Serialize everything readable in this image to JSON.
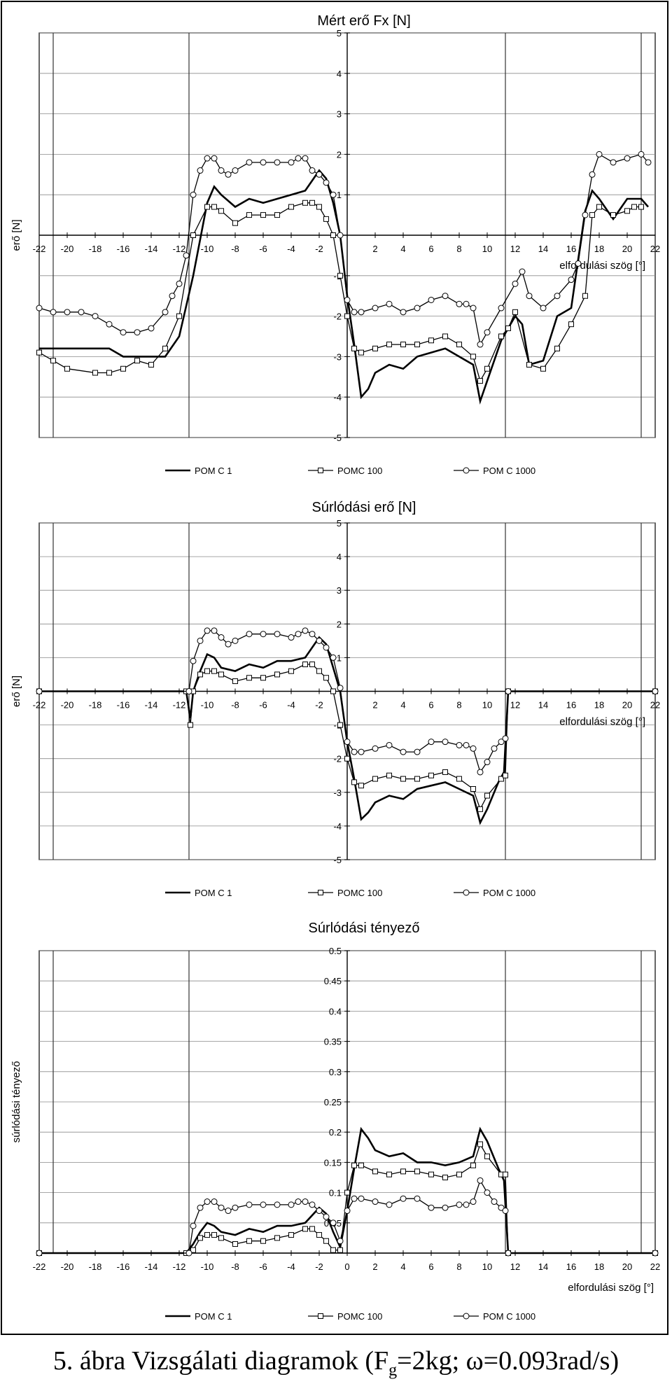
{
  "caption": {
    "prefix": "5. ábra Vizsgálati diagramok (F",
    "sub": "g",
    "suffix": "=2kg; ω=0.093rad/s)"
  },
  "chart_data": [
    {
      "type": "line",
      "title": "Mért erő Fx [N]",
      "ylabel": "erő [N]",
      "xlabel": "elfordulási szög [°]",
      "xlim": [
        -22,
        22
      ],
      "ylim": [
        -5,
        5
      ],
      "x_ticks": [
        -22,
        -20,
        -18,
        -16,
        -14,
        -12,
        -10,
        -8,
        -6,
        -4,
        -2,
        0,
        2,
        4,
        6,
        8,
        10,
        12,
        14,
        16,
        18,
        20,
        22
      ],
      "x_tick_labels": [
        "-22",
        "-20",
        "-18",
        "-16",
        "-14",
        "-12",
        "-10",
        "-8",
        "-6",
        "-4",
        "-2",
        "",
        "2",
        "4",
        "6",
        "8",
        "10",
        "12",
        "14",
        "16",
        "18",
        "20",
        "22"
      ],
      "y_ticks": [
        -5,
        -4,
        -3,
        -2,
        -1,
        1,
        2,
        3,
        4,
        5
      ],
      "y_tick_labels": [
        "-5",
        "-4",
        "-3",
        "-2",
        "-1",
        "1",
        "2",
        "3",
        "4",
        "5"
      ],
      "grid": true,
      "vlines": [
        -21,
        -11.3,
        11.3,
        21
      ],
      "legend_position": "bottom",
      "series": [
        {
          "name": "POM C 1",
          "marker": "none",
          "x": [
            -22,
            -17,
            -16,
            -13,
            -12,
            -11,
            -10,
            -9.5,
            -9,
            -8,
            -7,
            -6,
            -5,
            -4,
            -3,
            -2,
            -1.5,
            -1,
            -0.5,
            0,
            0.5,
            1,
            1.5,
            2,
            3,
            4,
            5,
            6,
            7,
            8,
            9,
            9.5,
            10,
            11,
            11.5,
            12,
            12.5,
            13,
            14,
            15,
            16,
            17,
            17.5,
            18,
            19,
            20,
            21,
            21.5
          ],
          "y": [
            -2.8,
            -2.8,
            -3,
            -3,
            -2.5,
            -1,
            0.8,
            1.2,
            1,
            0.7,
            0.9,
            0.8,
            0.9,
            1,
            1.1,
            1.6,
            1.4,
            0.8,
            0,
            -1.5,
            -2.7,
            -4,
            -3.8,
            -3.4,
            -3.2,
            -3.3,
            -3,
            -2.9,
            -2.8,
            -3,
            -3.2,
            -4.1,
            -3.6,
            -2.6,
            -2.3,
            -2,
            -2.2,
            -3.2,
            -3.1,
            -2,
            -1.8,
            0.6,
            1.1,
            0.9,
            0.4,
            0.9,
            0.9,
            0.7
          ]
        },
        {
          "name": "POMC 100",
          "marker": "square",
          "x": [
            -22,
            -21,
            -20,
            -18,
            -17,
            -16,
            -15,
            -14,
            -13,
            -12,
            -11,
            -10,
            -9.5,
            -9,
            -8,
            -7,
            -6,
            -5,
            -4,
            -3,
            -2.5,
            -2,
            -1.5,
            -1,
            -0.5,
            0,
            0.5,
            1,
            2,
            3,
            4,
            5,
            6,
            7,
            8,
            9,
            9.5,
            10,
            11,
            11.5,
            12,
            13,
            14,
            15,
            16,
            17,
            17.5,
            18,
            19,
            20,
            20.5,
            21
          ],
          "y": [
            -2.9,
            -3.1,
            -3.3,
            -3.4,
            -3.4,
            -3.3,
            -3.1,
            -3.2,
            -2.8,
            -2,
            0,
            0.7,
            0.7,
            0.6,
            0.3,
            0.5,
            0.5,
            0.5,
            0.7,
            0.8,
            0.8,
            0.7,
            0.4,
            0,
            -1,
            -2,
            -2.8,
            -2.9,
            -2.8,
            -2.7,
            -2.7,
            -2.7,
            -2.6,
            -2.5,
            -2.7,
            -3,
            -3.6,
            -3.3,
            -2.5,
            -2.3,
            -1.9,
            -3.2,
            -3.3,
            -2.8,
            -2.2,
            -1.5,
            0.5,
            0.7,
            0.5,
            0.6,
            0.7,
            0.7
          ]
        },
        {
          "name": "POM C 1000",
          "marker": "circle",
          "x": [
            -22,
            -21,
            -20,
            -19,
            -18,
            -17,
            -16,
            -15,
            -14,
            -13,
            -12.5,
            -12,
            -11.5,
            -11,
            -10.5,
            -10,
            -9.5,
            -9,
            -8.5,
            -8,
            -7,
            -6,
            -5,
            -4,
            -3.5,
            -3,
            -2.5,
            -2,
            -1.5,
            -1,
            -0.5,
            0,
            0.5,
            1,
            2,
            3,
            4,
            5,
            6,
            7,
            8,
            8.5,
            9,
            9.5,
            10,
            11,
            12,
            12.5,
            13,
            14,
            15,
            16,
            16.5,
            17,
            17.5,
            18,
            19,
            20,
            21,
            21.5
          ],
          "y": [
            -1.8,
            -1.9,
            -1.9,
            -1.9,
            -2,
            -2.2,
            -2.4,
            -2.4,
            -2.3,
            -1.9,
            -1.5,
            -1.2,
            -0.5,
            1,
            1.6,
            1.9,
            1.9,
            1.6,
            1.5,
            1.6,
            1.8,
            1.8,
            1.8,
            1.8,
            1.9,
            1.9,
            1.6,
            1.5,
            1.3,
            1,
            0,
            -1.6,
            -1.9,
            -1.9,
            -1.8,
            -1.7,
            -1.9,
            -1.8,
            -1.6,
            -1.5,
            -1.7,
            -1.7,
            -1.8,
            -2.7,
            -2.4,
            -1.8,
            -1.2,
            -0.9,
            -1.5,
            -1.8,
            -1.5,
            -1.1,
            -0.7,
            0.5,
            1.5,
            2,
            1.8,
            1.9,
            2,
            1.8
          ]
        }
      ]
    },
    {
      "type": "line",
      "title": "Súrlódási erő [N]",
      "ylabel": "erő [N]",
      "xlabel": "elfordulási szög [°]",
      "xlim": [
        -22,
        22
      ],
      "ylim": [
        -5,
        5
      ],
      "x_ticks": [
        -22,
        -20,
        -18,
        -16,
        -14,
        -12,
        -10,
        -8,
        -6,
        -4,
        -2,
        0,
        2,
        4,
        6,
        8,
        10,
        12,
        14,
        16,
        18,
        20,
        22
      ],
      "x_tick_labels": [
        "-22",
        "-20",
        "-18",
        "-16",
        "-14",
        "-12",
        "-10",
        "-8",
        "-6",
        "-4",
        "-2",
        "",
        "2",
        "4",
        "6",
        "8",
        "10",
        "12",
        "14",
        "16",
        "18",
        "20",
        "22"
      ],
      "y_ticks": [
        -5,
        -4,
        -3,
        -2,
        -1,
        1,
        2,
        3,
        4,
        5
      ],
      "y_tick_labels": [
        "-5",
        "-4",
        "-3",
        "-2",
        "-1",
        "1",
        "2",
        "3",
        "4",
        "5"
      ],
      "grid": true,
      "vlines": [
        -21,
        -11.3,
        11.3,
        21
      ],
      "legend_position": "bottom",
      "series": [
        {
          "name": "POM C 1",
          "marker": "none",
          "x": [
            -22,
            -11.5,
            -11.2,
            -11,
            -10.5,
            -10,
            -9.5,
            -9,
            -8,
            -7,
            -6,
            -5,
            -4,
            -3,
            -2,
            -1.5,
            -1,
            -0.5,
            0,
            0.5,
            1,
            1.5,
            2,
            3,
            4,
            5,
            6,
            7,
            8,
            9,
            9.5,
            10,
            10.8,
            11.2,
            11.5,
            22
          ],
          "y": [
            0,
            0,
            -0.8,
            0,
            0.6,
            1.1,
            1,
            0.7,
            0.6,
            0.8,
            0.7,
            0.9,
            0.9,
            1,
            1.6,
            1.4,
            0.7,
            0,
            -1.5,
            -2.6,
            -3.8,
            -3.6,
            -3.3,
            -3.1,
            -3.2,
            -2.9,
            -2.8,
            -2.7,
            -2.9,
            -3.1,
            -3.9,
            -3.5,
            -2.7,
            -2.4,
            0,
            0
          ]
        },
        {
          "name": "POMC 100",
          "marker": "square",
          "x": [
            -22,
            -11.5,
            -11.2,
            -11,
            -10.5,
            -10,
            -9.5,
            -9,
            -8,
            -7,
            -6,
            -5,
            -4,
            -3,
            -2.5,
            -2,
            -1.5,
            -1,
            -0.5,
            0,
            0.5,
            1,
            2,
            3,
            4,
            5,
            6,
            7,
            8,
            9,
            9.5,
            10,
            11,
            11.3,
            11.5,
            22
          ],
          "y": [
            0,
            0,
            -1,
            0,
            0.5,
            0.6,
            0.6,
            0.5,
            0.3,
            0.4,
            0.4,
            0.5,
            0.6,
            0.8,
            0.8,
            0.6,
            0.4,
            0,
            -1,
            -2,
            -2.7,
            -2.8,
            -2.6,
            -2.5,
            -2.6,
            -2.6,
            -2.5,
            -2.4,
            -2.6,
            -2.9,
            -3.5,
            -3.1,
            -2.6,
            -2.5,
            0,
            0
          ]
        },
        {
          "name": "POM C 1000",
          "marker": "circle",
          "x": [
            -22,
            -11.3,
            -11,
            -10.5,
            -10,
            -9.5,
            -9,
            -8.5,
            -8,
            -7,
            -6,
            -5,
            -4,
            -3.5,
            -3,
            -2.5,
            -2,
            -1.5,
            -1,
            -0.5,
            0,
            0.5,
            1,
            2,
            3,
            4,
            5,
            6,
            7,
            8,
            8.5,
            9,
            9.5,
            10,
            10.5,
            11,
            11.3,
            11.5,
            22
          ],
          "y": [
            0,
            0,
            0.9,
            1.5,
            1.8,
            1.8,
            1.6,
            1.4,
            1.5,
            1.7,
            1.7,
            1.7,
            1.6,
            1.7,
            1.8,
            1.7,
            1.5,
            1.3,
            1,
            0.1,
            -1.5,
            -1.8,
            -1.8,
            -1.7,
            -1.6,
            -1.8,
            -1.8,
            -1.5,
            -1.5,
            -1.6,
            -1.6,
            -1.7,
            -2.4,
            -2.1,
            -1.7,
            -1.5,
            -1.4,
            0,
            0
          ]
        }
      ]
    },
    {
      "type": "line",
      "title": "Súrlódási tényező",
      "ylabel": "súrlódási tényező",
      "xlabel": "elfordulási szög [°]",
      "xlim": [
        -22,
        22
      ],
      "ylim": [
        0,
        0.5
      ],
      "x_ticks": [
        -22,
        -20,
        -18,
        -16,
        -14,
        -12,
        -10,
        -8,
        -6,
        -4,
        -2,
        0,
        2,
        4,
        6,
        8,
        10,
        12,
        14,
        16,
        18,
        20,
        22
      ],
      "x_tick_labels": [
        "-22",
        "-20",
        "-18",
        "-16",
        "-14",
        "-12",
        "-10",
        "-8",
        "-6",
        "-4",
        "-2",
        "0",
        "2",
        "4",
        "6",
        "8",
        "10",
        "12",
        "14",
        "16",
        "18",
        "20",
        "22"
      ],
      "y_ticks": [
        0.05,
        0.1,
        0.15,
        0.2,
        0.25,
        0.3,
        0.35,
        0.4,
        0.45,
        0.5
      ],
      "y_tick_labels": [
        "0.05",
        "0.1",
        "0.15",
        "0.2",
        "0.25",
        "0.3",
        "0.35",
        "0.4",
        "0.45",
        "0.5"
      ],
      "grid": true,
      "vlines": [
        -21,
        -11.3,
        11.3,
        21
      ],
      "legend_position": "bottom",
      "series": [
        {
          "name": "POM C 1",
          "marker": "none",
          "x": [
            -22,
            -11.5,
            -11,
            -10.5,
            -10,
            -9.5,
            -9,
            -8,
            -7,
            -6,
            -5,
            -4,
            -3,
            -2,
            -1.5,
            -1,
            -0.5,
            0,
            0.5,
            1,
            1.5,
            2,
            3,
            4,
            5,
            6,
            7,
            8,
            9,
            9.5,
            10,
            10.8,
            11.2,
            11.5,
            22
          ],
          "y": [
            0,
            0,
            0.015,
            0.035,
            0.05,
            0.045,
            0.035,
            0.03,
            0.04,
            0.035,
            0.045,
            0.045,
            0.05,
            0.075,
            0.065,
            0.035,
            0.01,
            0.07,
            0.14,
            0.205,
            0.19,
            0.17,
            0.16,
            0.165,
            0.15,
            0.15,
            0.145,
            0.15,
            0.16,
            0.205,
            0.185,
            0.14,
            0.12,
            0,
            0
          ]
        },
        {
          "name": "POMC 100",
          "marker": "square",
          "x": [
            -22,
            -11.5,
            -11,
            -10.5,
            -10,
            -9.5,
            -9,
            -8,
            -7,
            -6,
            -5,
            -4,
            -3,
            -2.5,
            -2,
            -1.5,
            -1,
            -0.5,
            0,
            0.5,
            1,
            2,
            3,
            4,
            5,
            6,
            7,
            8,
            9,
            9.5,
            10,
            11,
            11.3,
            11.5,
            22
          ],
          "y": [
            0,
            0,
            0.005,
            0.025,
            0.03,
            0.03,
            0.025,
            0.015,
            0.02,
            0.02,
            0.025,
            0.03,
            0.04,
            0.04,
            0.03,
            0.02,
            0.005,
            0.005,
            0.1,
            0.145,
            0.145,
            0.135,
            0.13,
            0.135,
            0.135,
            0.13,
            0.125,
            0.13,
            0.145,
            0.18,
            0.16,
            0.13,
            0.13,
            0,
            0
          ]
        },
        {
          "name": "POM C 1000",
          "marker": "circle",
          "x": [
            -22,
            -11.3,
            -11,
            -10.5,
            -10,
            -9.5,
            -9,
            -8.5,
            -8,
            -7,
            -6,
            -5,
            -4,
            -3.5,
            -3,
            -2.5,
            -2,
            -1.5,
            -1,
            -0.5,
            0,
            0.5,
            1,
            2,
            3,
            4,
            5,
            6,
            7,
            8,
            8.5,
            9,
            9.5,
            10,
            10.5,
            11,
            11.3,
            11.5,
            22
          ],
          "y": [
            0,
            0,
            0.045,
            0.075,
            0.085,
            0.085,
            0.075,
            0.07,
            0.075,
            0.08,
            0.08,
            0.08,
            0.08,
            0.085,
            0.085,
            0.08,
            0.07,
            0.06,
            0.05,
            0.02,
            0.07,
            0.09,
            0.09,
            0.085,
            0.08,
            0.09,
            0.09,
            0.075,
            0.075,
            0.08,
            0.08,
            0.085,
            0.12,
            0.1,
            0.085,
            0.075,
            0.07,
            0,
            0
          ]
        }
      ]
    }
  ]
}
